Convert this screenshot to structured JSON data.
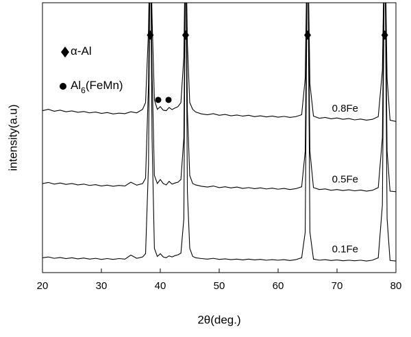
{
  "chart_data": {
    "type": "line",
    "xlabel": "2θ(deg.)",
    "ylabel": "intensity(a.u)",
    "xlim": [
      20,
      80
    ],
    "xticks": [
      20,
      30,
      40,
      50,
      60,
      70,
      80
    ],
    "ylim": [
      0,
      100
    ],
    "x": [
      20,
      21,
      22,
      23,
      24,
      25,
      26,
      27,
      28,
      29,
      30,
      31,
      32,
      33,
      34,
      35,
      36,
      37,
      37.5,
      38,
      38.3,
      38.6,
      39,
      39.5,
      40,
      40.5,
      41,
      41.5,
      42,
      42.5,
      43,
      43.5,
      44,
      44.3,
      44.6,
      45,
      45.5,
      46,
      47,
      48,
      49,
      50,
      51,
      52,
      53,
      54,
      55,
      56,
      57,
      58,
      59,
      60,
      61,
      62,
      63,
      64,
      64.6,
      65,
      65.4,
      66,
      67,
      68,
      69,
      70,
      71,
      72,
      73,
      74,
      75,
      76,
      77,
      77.7,
      78.1,
      78.5,
      79,
      80
    ],
    "series": [
      {
        "name": "0.8Fe",
        "color": "#000000",
        "values": [
          60,
          60.5,
          59.8,
          60.2,
          59.6,
          59.9,
          59.4,
          59.7,
          59.2,
          59.5,
          59,
          59.3,
          58.8,
          59.1,
          58.9,
          59.6,
          59.2,
          60.5,
          63,
          90,
          130,
          95,
          64,
          60.5,
          61.5,
          60.2,
          60,
          61.2,
          60.4,
          61,
          61.5,
          63,
          80,
          130,
          85,
          63,
          60.5,
          59.5,
          58.8,
          58.5,
          58.9,
          58.3,
          58.6,
          58.1,
          58.4,
          58,
          58.3,
          57.8,
          58.1,
          57.7,
          58,
          57.6,
          57.9,
          57.5,
          57.8,
          58.5,
          72,
          130,
          70,
          58,
          57.2,
          57.5,
          57,
          57.3,
          56.8,
          57.1,
          56.6,
          56.9,
          56.5,
          56.8,
          57.8,
          75,
          130,
          72,
          56.5,
          56
        ]
      },
      {
        "name": "0.5Fe",
        "color": "#000000",
        "values": [
          33,
          33.4,
          32.8,
          33.2,
          32.7,
          33,
          32.5,
          32.8,
          32.3,
          32.6,
          32.1,
          32.4,
          32,
          32.3,
          32.1,
          33.5,
          32.4,
          33,
          35,
          70,
          130,
          75,
          36,
          33,
          34.5,
          33,
          32.5,
          33.8,
          32.8,
          33.2,
          33.5,
          34.5,
          50,
          130,
          60,
          36,
          33,
          32.5,
          32,
          31.7,
          32.1,
          31.5,
          31.8,
          31.4,
          31.7,
          31.2,
          31.5,
          31.1,
          31.4,
          31,
          31.3,
          30.9,
          31.2,
          30.8,
          31.1,
          31.8,
          45,
          130,
          45,
          31.5,
          30.8,
          31,
          30.5,
          30.8,
          30.4,
          30.7,
          30.3,
          30.6,
          30.2,
          30.5,
          31.5,
          50,
          130,
          45,
          30.2,
          30
        ]
      },
      {
        "name": "0.1Fe",
        "color": "#000000",
        "values": [
          5.5,
          5.8,
          5.3,
          5.6,
          5.2,
          5.5,
          5.1,
          5.4,
          5,
          5.3,
          4.9,
          5.2,
          4.9,
          5.2,
          5,
          6.5,
          5.3,
          5.8,
          7,
          40,
          130,
          50,
          9,
          6,
          7,
          5.8,
          5.5,
          6.2,
          5.8,
          6.3,
          6.6,
          7.2,
          20,
          130,
          30,
          9,
          6,
          5.5,
          5.2,
          5,
          5.3,
          4.9,
          5.1,
          4.8,
          5,
          4.7,
          5,
          4.7,
          4.9,
          4.6,
          4.8,
          4.6,
          4.8,
          4.5,
          4.8,
          5.5,
          15,
          130,
          15,
          5,
          4.6,
          4.8,
          4.5,
          4.7,
          4.4,
          4.6,
          4.4,
          4.6,
          4.3,
          4.6,
          5.5,
          25,
          130,
          20,
          4.5,
          4.3
        ]
      }
    ],
    "markers": [
      {
        "name": "α-Al",
        "shape": "diamond",
        "color": "#000000",
        "x": [
          38.3,
          44.3,
          65,
          78.1
        ],
        "y": [
          88,
          88,
          88,
          88
        ]
      },
      {
        "name": "Al6(FeMn)",
        "shape": "circle",
        "color": "#000000",
        "x": [
          39.65,
          41.4
        ],
        "y": [
          64,
          64
        ]
      }
    ]
  }
}
